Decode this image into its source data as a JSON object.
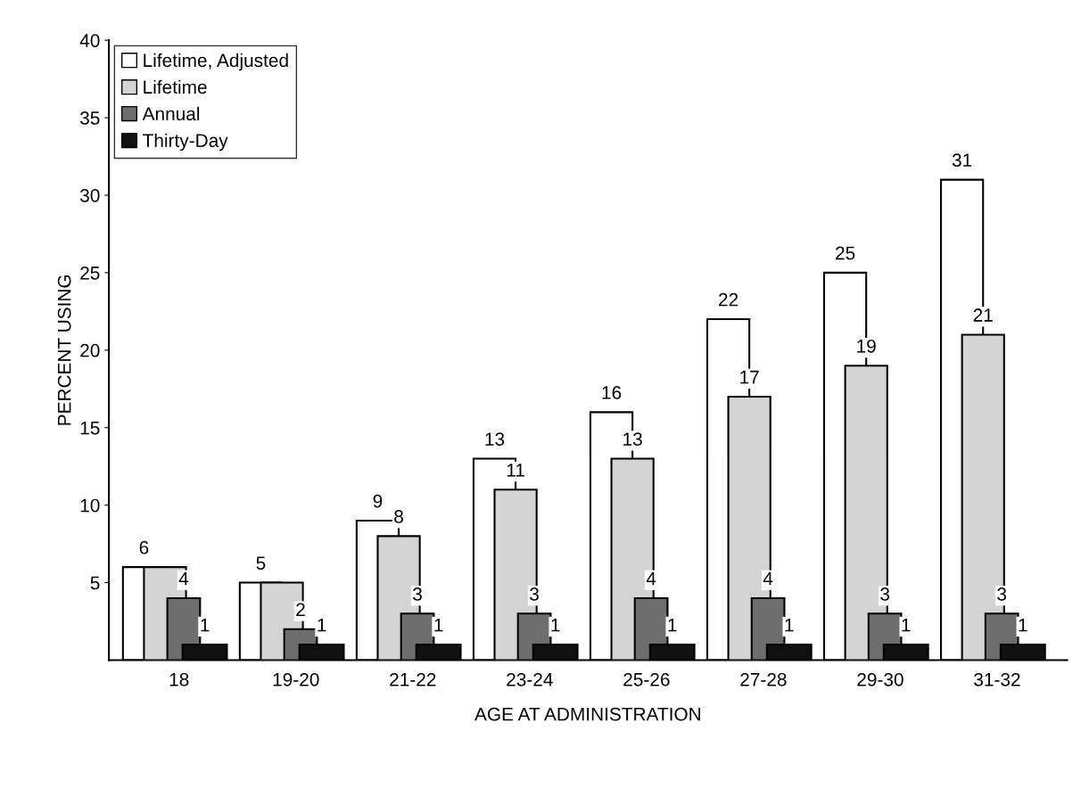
{
  "chart_data": {
    "type": "bar",
    "xlabel": "AGE AT ADMINISTRATION",
    "ylabel": "PERCENT USING",
    "categories": [
      "18",
      "19-20",
      "21-22",
      "23-24",
      "25-26",
      "27-28",
      "29-30",
      "31-32"
    ],
    "series": [
      {
        "name": "Lifetime, Adjusted",
        "color": "#ffffff",
        "values": [
          6,
          5,
          9,
          13,
          16,
          22,
          25,
          31
        ],
        "value_labels": [
          "6",
          "5",
          "9",
          "13",
          "16",
          "22",
          "25",
          "31"
        ]
      },
      {
        "name": "Lifetime",
        "color": "#d4d4d4",
        "values": [
          6,
          5,
          8,
          11,
          13,
          17,
          19,
          21
        ],
        "value_labels": [
          null,
          null,
          "8",
          "11",
          "13",
          "17",
          "19",
          "21"
        ]
      },
      {
        "name": "Annual",
        "color": "#6e6e6e",
        "values": [
          4,
          2,
          3,
          3,
          4,
          4,
          3,
          3
        ],
        "value_labels": [
          "4",
          "2",
          "3",
          "3",
          "4",
          "4",
          "3",
          "3"
        ]
      },
      {
        "name": "Thirty-Day",
        "color": "#111111",
        "values": [
          1,
          1,
          1,
          1,
          1,
          1,
          1,
          1
        ],
        "value_labels": [
          "1",
          "1",
          "1",
          "1",
          "1",
          "1",
          "1",
          "1"
        ]
      }
    ],
    "ylim": [
      0,
      40
    ],
    "yticks": [
      5,
      10,
      15,
      20,
      25,
      30,
      35,
      40
    ],
    "grid": false,
    "legend": "top left"
  }
}
